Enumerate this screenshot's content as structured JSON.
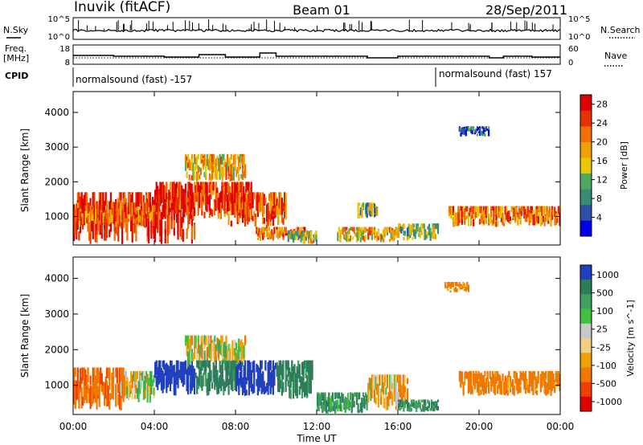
{
  "header": {
    "station": "Inuvik (fitACF)",
    "beam": "Beam 01",
    "date": "28/Sep/2011"
  },
  "sky_panel": {
    "left_label": "N.Sky",
    "right_label": "N.Search",
    "left_ticks": [
      "10^5",
      "10^0"
    ],
    "right_ticks": [
      "10^5",
      "10^0"
    ]
  },
  "freq_panel": {
    "left_label_line1": "Freq.",
    "left_label_line2": "[MHz]",
    "right_label": "Nave",
    "left_ticks": [
      "18",
      "8"
    ],
    "right_ticks": [
      "60",
      "0"
    ]
  },
  "cpid": {
    "label": "CPID",
    "segments": [
      {
        "text": "normalsound (fast) -157",
        "start_hour": 0.0
      },
      {
        "text": "normalsound (fast) 157",
        "start_hour": 18.0
      }
    ]
  },
  "axes": {
    "ylabel": "Slant Range [km]",
    "xlabel": "Time UT",
    "x_ticks": [
      "00:00",
      "04:00",
      "08:00",
      "12:00",
      "16:00",
      "20:00",
      "00:00"
    ],
    "y_ticks": [
      "1000",
      "2000",
      "3000",
      "4000"
    ]
  },
  "colors": {
    "velocity_palette": [
      "#e00000",
      "#f04000",
      "#f07800",
      "#f0a000",
      "#f0d080",
      "#c8c8c8",
      "#40c040",
      "#40a060",
      "#2e7d5a",
      "#2040c0"
    ]
  },
  "chart_data": [
    {
      "type": "heatmap",
      "name": "power",
      "xlabel": "Time UT",
      "ylabel": "Slant Range [km]",
      "xlim": [
        0,
        24
      ],
      "ylim": [
        180,
        4600
      ],
      "colorbar": {
        "label": "Power [dB]",
        "ticks": [
          "4",
          "8",
          "12",
          "16",
          "20",
          "24",
          "28"
        ],
        "range": [
          0,
          30
        ],
        "colors": [
          "#0000e8",
          "#2e50a8",
          "#3a8a78",
          "#50a860",
          "#e8c800",
          "#f0a000",
          "#f07000",
          "#e83000",
          "#e00000"
        ]
      },
      "blobs": [
        {
          "t0": 0.0,
          "t1": 6.0,
          "r0": 200,
          "r1": 1700,
          "level": 27
        },
        {
          "t0": 0.2,
          "t1": 4.0,
          "r0": 700,
          "r1": 1400,
          "level": 22
        },
        {
          "t0": 4.0,
          "t1": 8.8,
          "r0": 900,
          "r1": 2000,
          "level": 26
        },
        {
          "t0": 5.5,
          "t1": 8.5,
          "r0": 2000,
          "r1": 2800,
          "level": 18
        },
        {
          "t0": 7.5,
          "t1": 10.5,
          "r0": 700,
          "r1": 1700,
          "level": 24
        },
        {
          "t0": 9.0,
          "t1": 11.5,
          "r0": 300,
          "r1": 700,
          "level": 22
        },
        {
          "t0": 10.5,
          "t1": 12.0,
          "r0": 200,
          "r1": 600,
          "level": 14
        },
        {
          "t0": 13.0,
          "t1": 16.0,
          "r0": 250,
          "r1": 700,
          "level": 18
        },
        {
          "t0": 14.0,
          "t1": 15.0,
          "r0": 900,
          "r1": 1400,
          "level": 12
        },
        {
          "t0": 16.0,
          "t1": 18.0,
          "r0": 300,
          "r1": 800,
          "level": 12
        },
        {
          "t0": 18.5,
          "t1": 24.0,
          "r0": 700,
          "r1": 1300,
          "level": 21
        },
        {
          "t0": 19.0,
          "t1": 20.5,
          "r0": 3300,
          "r1": 3600,
          "level": 6
        }
      ]
    },
    {
      "type": "heatmap",
      "name": "velocity",
      "xlabel": "Time UT",
      "ylabel": "Slant Range [km]",
      "xlim": [
        0,
        24
      ],
      "ylim": [
        180,
        4600
      ],
      "colorbar": {
        "label": "Velocity [m s^-1]",
        "ticks": [
          "1000",
          "500",
          "100",
          "25",
          "-25",
          "-100",
          "-500",
          "-1000"
        ]
      },
      "blobs": [
        {
          "t0": 0.0,
          "t1": 2.5,
          "r0": 300,
          "r1": 1500,
          "level": -300
        },
        {
          "t0": 2.5,
          "t1": 4.0,
          "r0": 500,
          "r1": 1400,
          "level": 0
        },
        {
          "t0": 4.0,
          "t1": 6.0,
          "r0": 700,
          "r1": 1700,
          "level": 800
        },
        {
          "t0": 5.5,
          "t1": 8.5,
          "r0": 1500,
          "r1": 2400,
          "level": 0
        },
        {
          "t0": 6.0,
          "t1": 8.0,
          "r0": 700,
          "r1": 1700,
          "level": 300
        },
        {
          "t0": 8.0,
          "t1": 10.0,
          "r0": 700,
          "r1": 1700,
          "level": 700
        },
        {
          "t0": 10.0,
          "t1": 11.8,
          "r0": 600,
          "r1": 1700,
          "level": 300
        },
        {
          "t0": 12.0,
          "t1": 14.5,
          "r0": 200,
          "r1": 800,
          "level": 150
        },
        {
          "t0": 14.5,
          "t1": 16.5,
          "r0": 300,
          "r1": 1300,
          "level": -80
        },
        {
          "t0": 16.0,
          "t1": 18.0,
          "r0": 250,
          "r1": 600,
          "level": 200
        },
        {
          "t0": 19.0,
          "t1": 24.0,
          "r0": 700,
          "r1": 1400,
          "level": -200
        },
        {
          "t0": 18.3,
          "t1": 19.5,
          "r0": 3600,
          "r1": 3900,
          "level": -150
        }
      ]
    }
  ]
}
